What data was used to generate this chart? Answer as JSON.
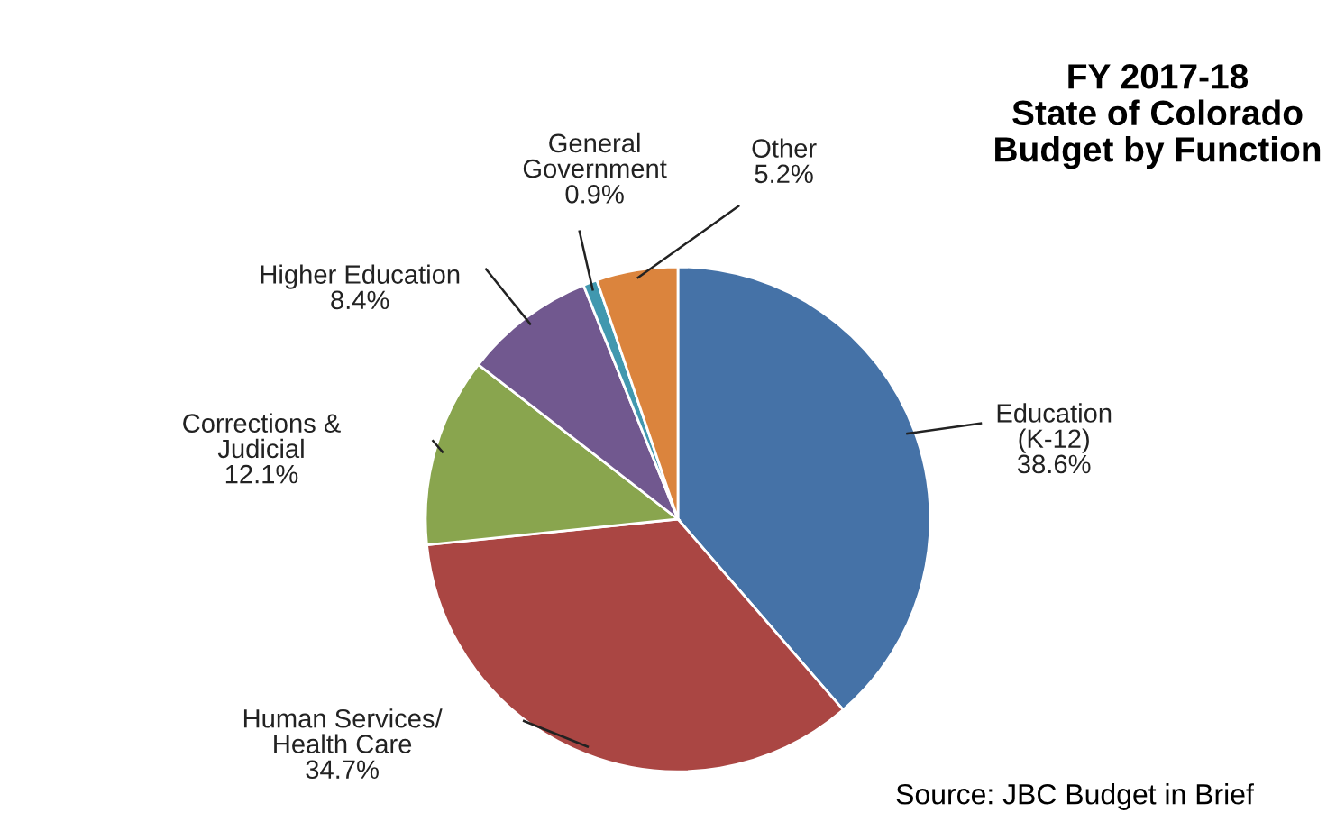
{
  "chart_data": {
    "type": "pie",
    "title": "FY 2017-18\nState of Colorado\nBudget by Function",
    "categories": [
      "Education\n(K-12)",
      "Human Services/\nHealth Care",
      "Corrections &\nJudicial",
      "Higher Education",
      "General\nGovernment",
      "Other"
    ],
    "values": [
      38.6,
      34.7,
      12.1,
      8.4,
      0.9,
      5.2
    ],
    "value_labels": [
      "38.6%",
      "34.7%",
      "12.1%",
      "8.4%",
      "0.9%",
      "5.2%"
    ],
    "colors": [
      "#4572a7",
      "#aa4643",
      "#89a54e",
      "#71588f",
      "#4198af",
      "#db843d"
    ],
    "annotations": [
      "Source: JBC Budget in Brief"
    ],
    "legend": false
  }
}
